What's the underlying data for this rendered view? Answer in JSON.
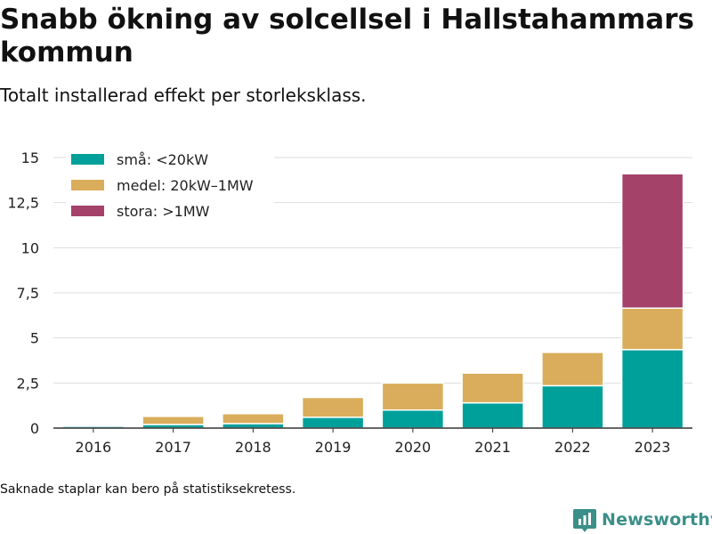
{
  "title": "Snabb ökning av solcellsel i Hallstahammars kommun",
  "subtitle": "Totalt installerad effekt per storleksklass.",
  "footnote": "Saknade staplar kan bero på statistiksekretess.",
  "brand": {
    "name": "Newsworthy",
    "icon": "bar-chart-logo-icon",
    "color": "#3a8f88"
  },
  "chart_data": {
    "type": "bar",
    "stacked": true,
    "categories": [
      "2016",
      "2017",
      "2018",
      "2019",
      "2020",
      "2021",
      "2022",
      "2023"
    ],
    "series": [
      {
        "name": "små: <20kW",
        "color": "#00a09a",
        "values": [
          0.1,
          0.2,
          0.25,
          0.6,
          1.0,
          1.4,
          2.35,
          4.35
        ]
      },
      {
        "name": "medel: 20kW–1MW",
        "color": "#d9ad5b",
        "values": [
          0.0,
          0.45,
          0.55,
          1.1,
          1.5,
          1.65,
          1.85,
          2.3
        ]
      },
      {
        "name": "stora: >1MW",
        "color": "#a4426a",
        "values": [
          0,
          0,
          0,
          0,
          0,
          0,
          0,
          7.45
        ]
      }
    ],
    "ylim": [
      0,
      15
    ],
    "yticks": [
      0,
      2.5,
      5,
      7.5,
      10,
      12.5,
      15
    ],
    "ytick_labels": [
      "0",
      "2,5",
      "5",
      "7,5",
      "10",
      "12,5",
      "15"
    ],
    "grid": true,
    "legend_position": "top-left",
    "xlabel": "",
    "ylabel": ""
  }
}
